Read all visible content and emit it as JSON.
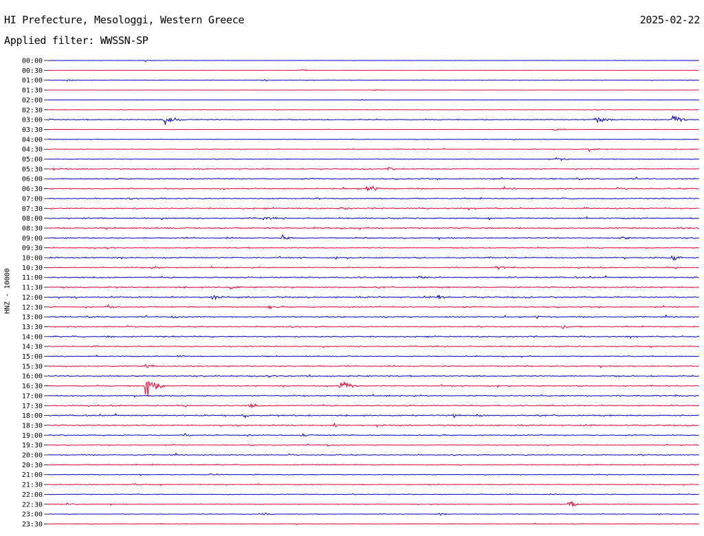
{
  "header": {
    "title": "HI Prefecture, Mesologgi, Western Greece",
    "date": "2025-02-22",
    "filter": "Applied filter: WWSSN-SP"
  },
  "chart_data": {
    "type": "line",
    "title": "HI Prefecture, Mesologgi, Western Greece",
    "subtitle": "Applied filter: WWSSN-SP",
    "ylabel": "HNZ - 10000",
    "xlabel": "",
    "tick_labels": [
      "00:00",
      "00:30",
      "01:00",
      "01:30",
      "02:00",
      "02:30",
      "03:00",
      "03:30",
      "04:00",
      "04:30",
      "05:00",
      "05:30",
      "06:00",
      "06:30",
      "07:00",
      "07:30",
      "08:00",
      "08:30",
      "09:00",
      "09:30",
      "10:00",
      "10:30",
      "11:00",
      "11:30",
      "12:00",
      "12:30",
      "13:00",
      "13:30",
      "14:00",
      "14:30",
      "15:00",
      "15:30",
      "16:00",
      "16:30",
      "17:00",
      "17:30",
      "18:00",
      "18:30",
      "19:00",
      "19:30",
      "20:00",
      "20:30",
      "21:00",
      "21:30",
      "22:00",
      "22:30",
      "23:00",
      "23:30"
    ],
    "colors": [
      "#0000cc",
      "#ee0033"
    ],
    "noise_levels": [
      0.3,
      0.2,
      0.6,
      0.2,
      0.2,
      0.5,
      1.2,
      0.4,
      0.6,
      0.9,
      0.8,
      1.3,
      1.5,
      1.5,
      1.4,
      1.6,
      1.6,
      1.8,
      1.5,
      1.4,
      1.6,
      1.3,
      1.6,
      1.6,
      1.6,
      1.5,
      1.4,
      1.3,
      1.6,
      1.2,
      1.3,
      1.4,
      1.6,
      1.5,
      1.4,
      1.5,
      1.6,
      1.4,
      1.4,
      1.0,
      1.2,
      1.1,
      0.9,
      1.1,
      1.0,
      0.9,
      0.8,
      0.9
    ],
    "events": [
      {
        "row": 0,
        "x": 0.15,
        "amp": 2
      },
      {
        "row": 1,
        "x": 0.39,
        "amp": 3
      },
      {
        "row": 2,
        "x": 0.03,
        "amp": 3
      },
      {
        "row": 2,
        "x": 0.33,
        "amp": 3
      },
      {
        "row": 3,
        "x": 0.5,
        "amp": 2
      },
      {
        "row": 4,
        "x": 0.48,
        "amp": 2
      },
      {
        "row": 6,
        "x": 0.18,
        "amp": 16
      },
      {
        "row": 6,
        "x": 0.84,
        "amp": 12
      },
      {
        "row": 6,
        "x": 0.96,
        "amp": 10
      },
      {
        "row": 6,
        "x": 0.0,
        "amp": 3
      },
      {
        "row": 7,
        "x": 0.78,
        "amp": 5
      },
      {
        "row": 9,
        "x": 0.83,
        "amp": 5
      },
      {
        "row": 10,
        "x": 0.78,
        "amp": 5
      },
      {
        "row": 11,
        "x": 0.52,
        "amp": 5
      },
      {
        "row": 13,
        "x": 0.49,
        "amp": 12
      },
      {
        "row": 15,
        "x": 0.45,
        "amp": 4
      },
      {
        "row": 16,
        "x": 0.33,
        "amp": 6
      },
      {
        "row": 18,
        "x": 0.36,
        "amp": 6
      },
      {
        "row": 18,
        "x": 0.88,
        "amp": 5
      },
      {
        "row": 20,
        "x": 0.0,
        "amp": 3
      },
      {
        "row": 20,
        "x": 0.96,
        "amp": 7
      },
      {
        "row": 21,
        "x": 0.16,
        "amp": 5
      },
      {
        "row": 21,
        "x": 0.69,
        "amp": 6
      },
      {
        "row": 22,
        "x": 0.57,
        "amp": 6
      },
      {
        "row": 23,
        "x": 0.28,
        "amp": 5
      },
      {
        "row": 24,
        "x": 0.25,
        "amp": 6
      },
      {
        "row": 24,
        "x": 0.6,
        "amp": 6
      },
      {
        "row": 25,
        "x": 0.09,
        "amp": 6
      },
      {
        "row": 25,
        "x": 0.34,
        "amp": 4
      },
      {
        "row": 26,
        "x": 0.19,
        "amp": 4
      },
      {
        "row": 26,
        "x": 0.75,
        "amp": 4
      },
      {
        "row": 27,
        "x": 0.79,
        "amp": 5
      },
      {
        "row": 28,
        "x": 0.09,
        "amp": 4
      },
      {
        "row": 30,
        "x": 0.2,
        "amp": 4
      },
      {
        "row": 31,
        "x": 0.15,
        "amp": 6
      },
      {
        "row": 32,
        "x": 0.4,
        "amp": 4
      },
      {
        "row": 33,
        "x": 0.15,
        "amp": 26
      },
      {
        "row": 33,
        "x": 0.45,
        "amp": 13
      },
      {
        "row": 35,
        "x": 0.31,
        "amp": 6
      },
      {
        "row": 36,
        "x": 0.3,
        "amp": 6
      },
      {
        "row": 36,
        "x": 0.62,
        "amp": 5
      },
      {
        "row": 36,
        "x": 0.66,
        "amp": 5
      },
      {
        "row": 37,
        "x": 0.44,
        "amp": 4
      },
      {
        "row": 38,
        "x": 0.21,
        "amp": 4
      },
      {
        "row": 38,
        "x": 0.39,
        "amp": 4
      },
      {
        "row": 39,
        "x": 0.43,
        "amp": 3
      },
      {
        "row": 42,
        "x": 0.25,
        "amp": 4
      },
      {
        "row": 43,
        "x": 0.13,
        "amp": 3
      },
      {
        "row": 45,
        "x": 0.03,
        "amp": 4
      },
      {
        "row": 45,
        "x": 0.8,
        "amp": 8
      },
      {
        "row": 46,
        "x": 0.33,
        "amp": 3
      },
      {
        "row": 46,
        "x": 0.6,
        "amp": 3
      }
    ]
  }
}
